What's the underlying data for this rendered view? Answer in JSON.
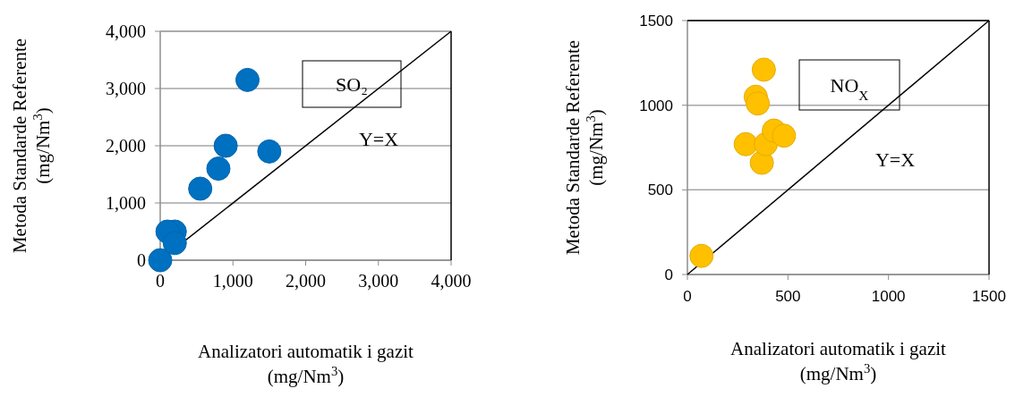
{
  "chart_data": [
    {
      "type": "scatter",
      "xlabel": "Analizatori automatik i gazit\n(mg/Nm$^{3}$)",
      "ylabel": "Metoda Standarde Referente\n(mg/Nm$^{3}$)",
      "xlim": [
        0,
        4000
      ],
      "ylim": [
        0,
        4000
      ],
      "xticks": [
        0,
        {
          "value": 1000,
          "label": "1,000"
        },
        {
          "value": 2000,
          "label": "2,000"
        },
        {
          "value": 3000,
          "label": "3,000"
        },
        {
          "value": 4000,
          "label": "4,000"
        }
      ],
      "yticks": [
        0,
        {
          "value": 1000,
          "label": "1,000"
        },
        {
          "value": 2000,
          "label": "2,000"
        },
        {
          "value": 3000,
          "label": "3,000"
        },
        {
          "value": 4000,
          "label": "4,000"
        }
      ],
      "grid": "y",
      "series": [
        {
          "type": "scatter",
          "marker": "circle",
          "color": "#0070c0",
          "x": [
            0,
            1200,
            900,
            1500,
            800,
            550,
            200,
            100,
            200
          ],
          "values": [
            0,
            3150,
            2000,
            1900,
            1600,
            1250,
            500,
            500,
            300
          ]
        },
        {
          "type": "line",
          "color": "#000000",
          "x": [
            0,
            4000
          ],
          "values": [
            0,
            4000
          ]
        }
      ],
      "annotations": [
        "SO₂",
        "Y=X"
      ]
    },
    {
      "type": "scatter",
      "xlabel": "Analizatori automatik i gazit\n(mg/Nm$^{3}$)",
      "ylabel": "Metoda Standarde Referente\n(mg/Nm$^{3}$)",
      "xlim": [
        0,
        1500
      ],
      "ylim": [
        0,
        1500
      ],
      "xticks": [
        0,
        500,
        1000,
        1500
      ],
      "yticks": [
        0,
        500,
        1000,
        1500
      ],
      "grid": "y",
      "series": [
        {
          "type": "scatter",
          "marker": "circle",
          "color": "#ffc000",
          "x": [
            380,
            340,
            350,
            290,
            370,
            390,
            430,
            480,
            70
          ],
          "values": [
            1210,
            1050,
            1010,
            770,
            660,
            770,
            850,
            820,
            110
          ]
        },
        {
          "type": "line",
          "color": "#000000",
          "x": [
            0,
            1500
          ],
          "values": [
            0,
            1500
          ]
        }
      ],
      "annotations": [
        "NO$_{X}$",
        "Y=X"
      ]
    }
  ]
}
